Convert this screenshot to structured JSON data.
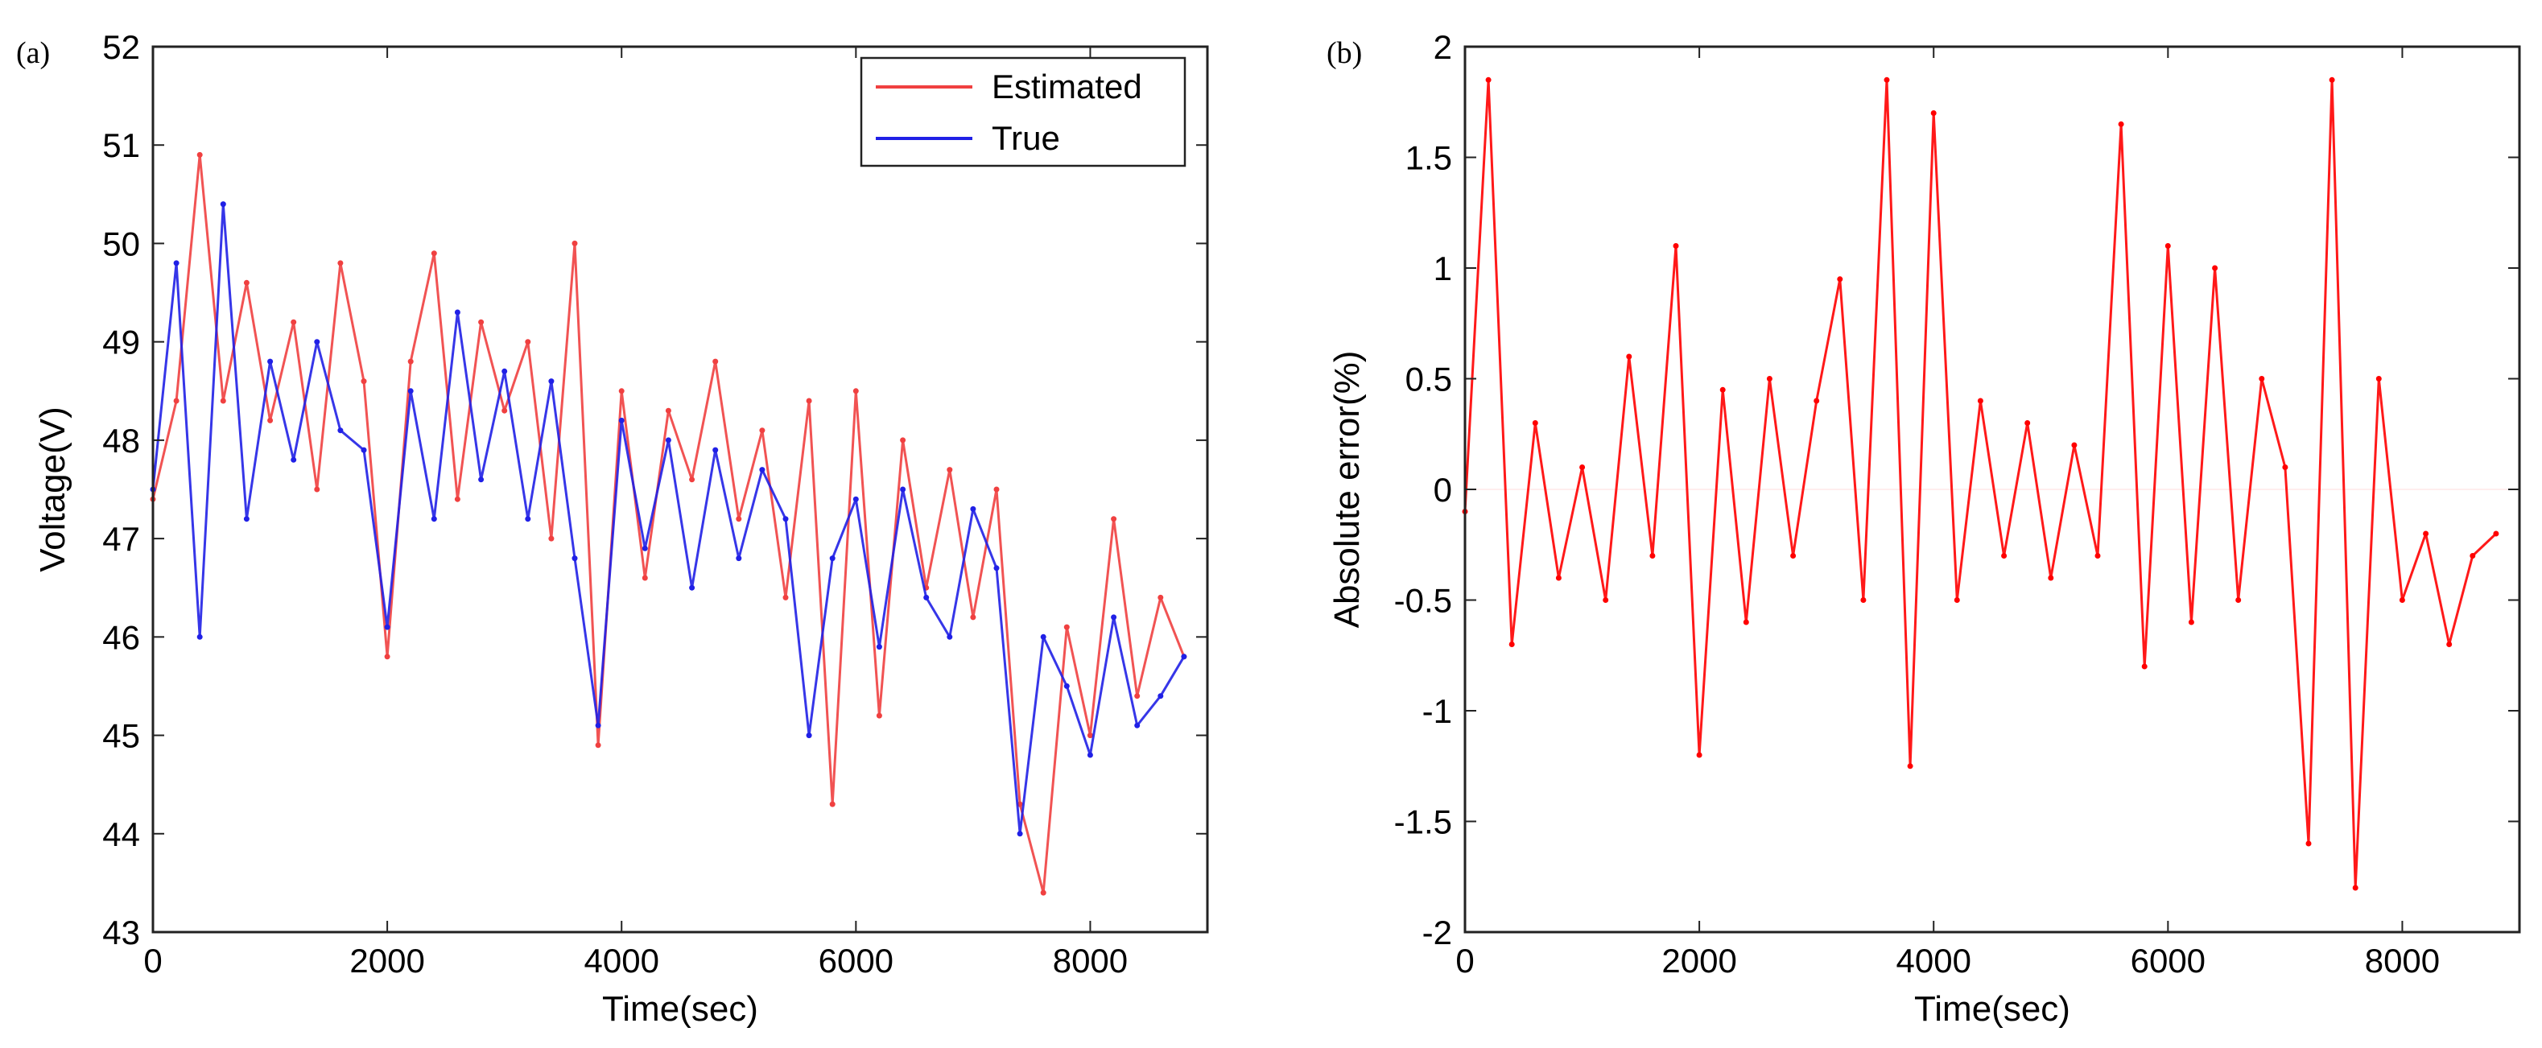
{
  "chart_data": [
    {
      "type": "line",
      "panel_label": "(a)",
      "title": "",
      "xlabel": "Time(sec)",
      "ylabel": "Voltage(V)",
      "xlim": [
        0,
        9000
      ],
      "ylim": [
        43,
        52
      ],
      "xticks": [
        0,
        2000,
        4000,
        6000,
        8000
      ],
      "yticks": [
        43,
        44,
        45,
        46,
        47,
        48,
        49,
        50,
        51,
        52
      ],
      "grid": false,
      "legend": {
        "position": "top-right",
        "entries": [
          "Estimated",
          "True"
        ]
      },
      "series": [
        {
          "name": "Estimated",
          "color": "#f04040",
          "x": [
            0,
            200,
            400,
            600,
            800,
            1000,
            1200,
            1400,
            1600,
            1800,
            2000,
            2200,
            2400,
            2600,
            2800,
            3000,
            3200,
            3400,
            3600,
            3800,
            4000,
            4200,
            4400,
            4600,
            4800,
            5000,
            5200,
            5400,
            5600,
            5800,
            6000,
            6200,
            6400,
            6600,
            6800,
            7000,
            7200,
            7400,
            7600,
            7800,
            8000,
            8200,
            8400,
            8600,
            8800
          ],
          "values": [
            47.4,
            48.4,
            50.9,
            48.4,
            49.6,
            48.2,
            49.2,
            47.5,
            49.8,
            48.6,
            45.8,
            48.8,
            49.9,
            47.4,
            49.2,
            48.3,
            49.0,
            47.0,
            50.0,
            44.9,
            48.5,
            46.6,
            48.3,
            47.6,
            48.8,
            47.2,
            48.1,
            46.4,
            48.4,
            44.3,
            48.5,
            45.2,
            48.0,
            46.5,
            47.7,
            46.2,
            47.5,
            44.3,
            43.4,
            46.1,
            45.0,
            47.2,
            45.4,
            46.4,
            45.8
          ]
        },
        {
          "name": "True",
          "color": "#2020e6",
          "x": [
            0,
            200,
            400,
            600,
            800,
            1000,
            1200,
            1400,
            1600,
            1800,
            2000,
            2200,
            2400,
            2600,
            2800,
            3000,
            3200,
            3400,
            3600,
            3800,
            4000,
            4200,
            4400,
            4600,
            4800,
            5000,
            5200,
            5400,
            5600,
            5800,
            6000,
            6200,
            6400,
            6600,
            6800,
            7000,
            7200,
            7400,
            7600,
            7800,
            8000,
            8200,
            8400,
            8600,
            8800
          ],
          "values": [
            47.5,
            49.8,
            46.0,
            50.4,
            47.2,
            48.8,
            47.8,
            49.0,
            48.1,
            47.9,
            46.1,
            48.5,
            47.2,
            49.3,
            47.6,
            48.7,
            47.2,
            48.6,
            46.8,
            45.1,
            48.2,
            46.9,
            48.0,
            46.5,
            47.9,
            46.8,
            47.7,
            47.2,
            45.0,
            46.8,
            47.4,
            45.9,
            47.5,
            46.4,
            46.0,
            47.3,
            46.7,
            44.0,
            46.0,
            45.5,
            44.8,
            46.2,
            45.1,
            45.4,
            45.8
          ]
        }
      ]
    },
    {
      "type": "line",
      "panel_label": "(b)",
      "title": "",
      "xlabel": "Time(sec)",
      "ylabel": "Absolute error(%)",
      "xlim": [
        0,
        9000
      ],
      "ylim": [
        -2,
        2
      ],
      "xticks": [
        0,
        2000,
        4000,
        6000,
        8000
      ],
      "yticks": [
        -2,
        -1.5,
        -1,
        -0.5,
        0,
        0.5,
        1,
        1.5,
        2
      ],
      "ytick_labels": [
        "-2",
        "-1.5",
        "-1",
        "-0.5",
        "0",
        "0.5",
        "1",
        "1.5",
        "2"
      ],
      "grid": false,
      "series": [
        {
          "name": "Absolute error",
          "color": "#ff0000",
          "x": [
            0,
            200,
            400,
            600,
            800,
            1000,
            1200,
            1400,
            1600,
            1800,
            2000,
            2200,
            2400,
            2600,
            2800,
            3000,
            3200,
            3400,
            3600,
            3800,
            4000,
            4200,
            4400,
            4600,
            4800,
            5000,
            5200,
            5400,
            5600,
            5800,
            6000,
            6200,
            6400,
            6600,
            6800,
            7000,
            7200,
            7400,
            7600,
            7800,
            8000,
            8200,
            8400,
            8600,
            8800
          ],
          "values": [
            -0.1,
            1.85,
            -0.7,
            0.3,
            -0.4,
            0.1,
            -0.5,
            0.6,
            -0.3,
            1.1,
            -1.2,
            0.45,
            -0.6,
            0.5,
            -0.3,
            0.4,
            0.95,
            -0.5,
            1.85,
            -1.25,
            1.7,
            -0.5,
            0.4,
            -0.3,
            0.3,
            -0.4,
            0.2,
            -0.3,
            1.65,
            -0.8,
            1.1,
            -0.6,
            1.0,
            -0.5,
            0.5,
            0.1,
            -1.6,
            1.85,
            -1.8,
            0.5,
            -0.5,
            -0.2,
            -0.7,
            -0.3,
            -0.2
          ]
        }
      ]
    }
  ]
}
